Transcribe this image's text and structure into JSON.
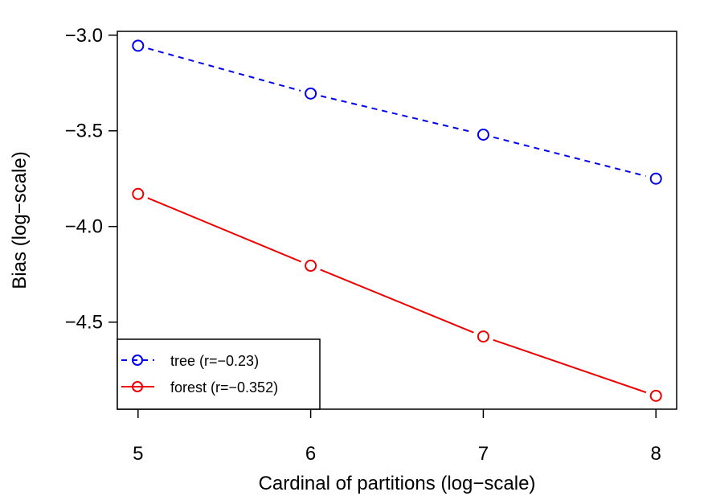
{
  "chart_data": {
    "type": "line",
    "title": "",
    "xlabel": "Cardinal of partitions (log−scale)",
    "ylabel": "Bias (log−scale)",
    "x": [
      5,
      6,
      7,
      8
    ],
    "xticks": [
      "5",
      "6",
      "7",
      "8"
    ],
    "yticks": [
      "−3.0",
      "−3.5",
      "−4.0",
      "−4.5"
    ],
    "ytick_values": [
      -3.0,
      -3.5,
      -4.0,
      -4.5
    ],
    "xlim": [
      4.88,
      8.12
    ],
    "ylim": [
      -4.955,
      -2.98
    ],
    "series": [
      {
        "name": "tree",
        "legend": "tree (r=−0.23)",
        "color": "#0000ee",
        "dash": "dashed",
        "marker": "open-circle",
        "values": [
          -3.055,
          -3.305,
          -3.52,
          -3.75
        ]
      },
      {
        "name": "forest",
        "legend": "forest (r=−0.352)",
        "color": "#ee0000",
        "dash": "solid",
        "marker": "open-circle",
        "values": [
          -3.83,
          -4.205,
          -4.575,
          -4.885
        ]
      }
    ],
    "legend_position": "bottom-left",
    "grid": false
  }
}
